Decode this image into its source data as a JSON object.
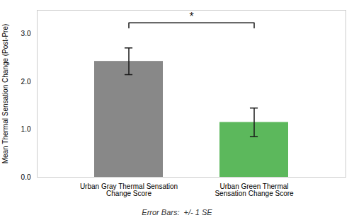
{
  "chart_data": {
    "type": "bar",
    "categories": [
      "Urban Gray Thermal Sensation Change Score",
      "Urban Green Thermal Sensation Change Score"
    ],
    "values": [
      2.43,
      1.15
    ],
    "errors": [
      0.28,
      0.3
    ],
    "colors": [
      "#888888",
      "#5cb85c"
    ],
    "ylabel": "Mean Thermal Sensation Change (Post-Pre)",
    "note": "Error Bars:  +/- 1 SE",
    "significance_label": "*",
    "ylim": [
      0,
      3.5
    ],
    "yticks": [
      0,
      1,
      2,
      3
    ],
    "grid": true
  }
}
